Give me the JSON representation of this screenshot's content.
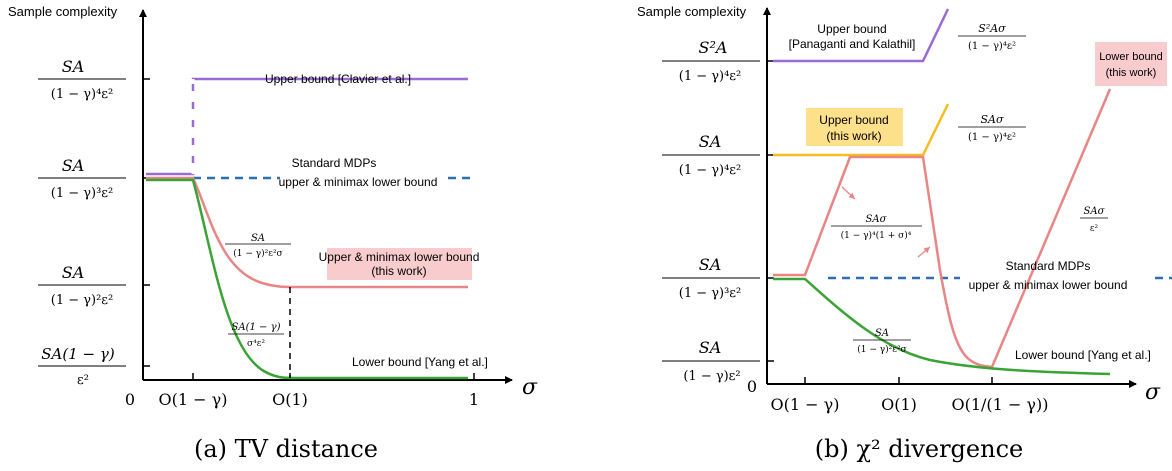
{
  "panel_a": {
    "caption": "(a) TV distance",
    "y_axis_title": "Sample complexity",
    "x_axis_symbol": "σ",
    "y_ticks": [
      {
        "num": "SA",
        "den": "(1 − γ)⁴ε²"
      },
      {
        "num": "SA",
        "den": "(1 − γ)³ε²"
      },
      {
        "num": "SA",
        "den": "(1 − γ)²ε²"
      },
      {
        "num": "SA(1 − γ)",
        "den": "ε²"
      }
    ],
    "x_ticks": [
      "0",
      "O(1 − γ)",
      "O(1)",
      "1"
    ],
    "labels": {
      "upper_clavier": "Upper bound [Clavier et al.]",
      "standard_line1": "Standard MDPs",
      "standard_line2": "upper & minimax lower bound",
      "upper_minimax_line1": "Upper & minimax lower bound",
      "upper_minimax_line2": "(this work)",
      "lower_yang": "Lower bound [Yang et al.]",
      "expr_red_num": "SA",
      "expr_red_den": "(1 − γ)²ε²σ",
      "expr_green_num": "SA(1 − γ)",
      "expr_green_den": "σ⁴ε²"
    }
  },
  "panel_b": {
    "caption": "(b) χ² divergence",
    "y_axis_title": "Sample complexity",
    "x_axis_symbol": "σ",
    "origin": "0",
    "y_ticks": [
      {
        "num": "S²A",
        "den": "(1 − γ)⁴ε²"
      },
      {
        "num": "SA",
        "den": "(1 − γ)⁴ε²"
      },
      {
        "num": "SA",
        "den": "(1 − γ)³ε²"
      },
      {
        "num": "SA",
        "den": "(1 − γ)ε²"
      }
    ],
    "x_ticks": [
      "O(1 − γ)",
      "O(1)",
      "O(1/(1 − γ))"
    ],
    "labels": {
      "upper_panaganti_line1": "Upper bound",
      "upper_panaganti_line2": "[Panaganti and Kalathil]",
      "expr_purple_num": "S²Aσ",
      "expr_purple_den": "(1 − γ)⁴ε²",
      "upper_this_line1": "Upper bound",
      "upper_this_line2": "(this work)",
      "expr_yellow_num": "SAσ",
      "expr_yellow_den": "(1 − γ)⁴ε²",
      "lower_this_line1": "Lower bound",
      "lower_this_line2": "(this work)",
      "expr_mid_num": "SAσ",
      "expr_mid_den": "(1 − γ)⁴(1 + σ)⁴",
      "expr_right_num": "SAσ",
      "expr_right_den": "ε²",
      "standard_line1": "Standard MDPs",
      "standard_line2": "upper & minimax lower bound",
      "expr_green_num": "SA",
      "expr_green_den": "(1 − γ)²ε²σ",
      "lower_yang": "Lower bound [Yang et al.]"
    }
  },
  "colors": {
    "purple": "#9a6ad6",
    "blue": "#2f6fb0",
    "red": "#e98585",
    "green": "#3aa335",
    "yellow": "#f5bd1f",
    "red_box": "#f8cccc",
    "yellow_box": "#fde08a",
    "axis": "#000000"
  },
  "chart_data": [
    {
      "type": "line",
      "title": "(a) TV distance",
      "xlabel": "σ",
      "ylabel": "Sample complexity",
      "x_tick_labels": [
        "0",
        "O(1 − γ)",
        "O(1)",
        "1"
      ],
      "y_tick_labels": [
        "SA/((1 − γ)⁴ε²)",
        "SA/((1 − γ)³ε²)",
        "SA/((1 − γ)²ε²)",
        "SA(1 − γ)/ε²"
      ],
      "series": [
        {
          "name": "Upper bound [Clavier et al.]",
          "style": "solid, jumps from the standard-MDP level up to SA/((1 − γ)⁴ε²) at O(1 − γ)"
        },
        {
          "name": "Standard MDPs upper & minimax lower bound",
          "style": "dashed, constant at SA/((1 − γ)³ε²)"
        },
        {
          "name": "Upper & minimax lower bound (this work)",
          "style": "decays from SA/((1 − γ)³ε²) at O(1 − γ) as SA/((1 − γ)²ε²σ), flat at SA/((1 − γ)²ε²) beyond O(1)"
        },
        {
          "name": "Lower bound [Yang et al.]",
          "style": "decays from SA/((1 − γ)³ε²) at O(1 − γ) as SA(1 − γ)/(σ⁴ε²), flat at SA(1 − γ)/ε² beyond O(1)"
        }
      ]
    },
    {
      "type": "line",
      "title": "(b) χ² divergence",
      "xlabel": "σ",
      "ylabel": "Sample complexity",
      "x_tick_labels": [
        "0",
        "O(1 − γ)",
        "O(1)",
        "O(1/(1 − γ))"
      ],
      "y_tick_labels": [
        "S²A/((1 − γ)⁴ε²)",
        "SA/((1 − γ)⁴ε²)",
        "SA/((1 − γ)³ε²)",
        "SA/((1 − γ)ε²)"
      ],
      "series": [
        {
          "name": "Upper bound [Panaganti and Kalathil]",
          "style": "flat at S²A/((1 − γ)⁴ε²) then growing as S²Aσ/((1 − γ)⁴ε²)"
        },
        {
          "name": "Upper bound (this work)",
          "style": "flat at SA/((1 − γ)⁴ε²) then growing as SAσ/((1 − γ)⁴ε²)"
        },
        {
          "name": "Lower bound (this work)",
          "style": "SAσ/((1 − γ)⁴(1 + σ)⁴): rises to SA/((1 − γ)⁴ε²), plateaus, drops to SA/((1 − γ)ε²) at O(1/(1 − γ)), then grows as SAσ/ε²"
        },
        {
          "name": "Standard MDPs upper & minimax lower bound",
          "style": "dashed, constant at SA/((1 − γ)³ε²)"
        },
        {
          "name": "Lower bound [Yang et al.]",
          "style": "decays as SA/((1 − γ)²ε²σ) toward SA/((1 − γ)ε²)"
        }
      ]
    }
  ]
}
